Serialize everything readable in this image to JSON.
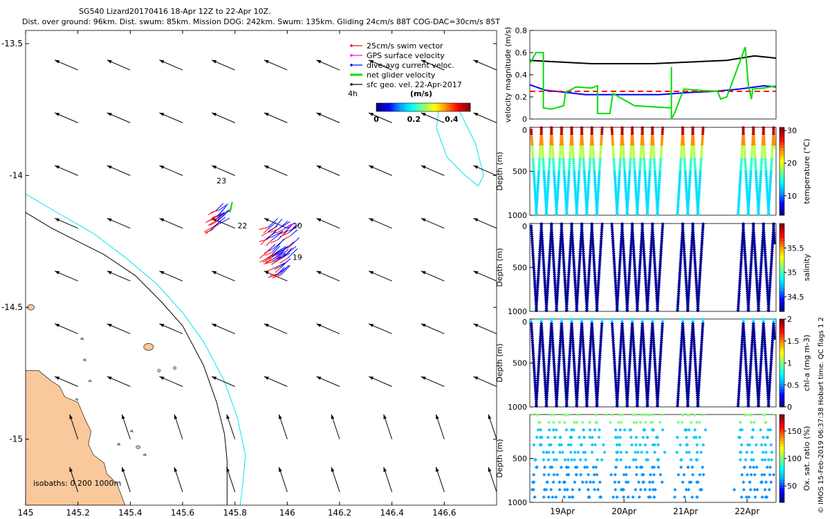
{
  "header": {
    "title": "SG540 Lizard20170416 18-Apr 12Z to 22-Apr 10Z.",
    "subtitle": "Dist. over ground: 96km. Dist. swum: 85km. Mission DOG: 242km. Swum: 135km. Gliding 24cm/s 88T COG-DAC=30cm/s 85T"
  },
  "credit": "© IMOS 15-Feb-2019 06:37:38 Hobart time. QC flags 1  2",
  "colors": {
    "land": "#f9c89b",
    "isobath_200": "#000000",
    "isobath_1000": "#00e5ee",
    "swim": "#ff0000",
    "gps": "#ff00ff",
    "dac": "#0000ff",
    "net": "#00dd00",
    "sfc": "#000000"
  },
  "chart_data": [
    {
      "type": "map-vectors",
      "xlim": [
        145.0,
        146.8
      ],
      "ylim": [
        -15.25,
        -13.45
      ],
      "x_ticks": [
        145,
        145.2,
        145.4,
        145.6,
        145.8,
        146,
        146.2,
        146.4,
        146.6
      ],
      "x_tick_labels": [
        "145",
        "145.2",
        "145.4",
        "145.6",
        "145.8",
        "146",
        "146.2",
        "146.4",
        "146.6"
      ],
      "y_ticks": [
        -13.5,
        -14,
        -14.5,
        -15
      ],
      "y_tick_labels": [
        "-13.5",
        "-14",
        "-14.5",
        "-15"
      ],
      "legend": {
        "position": "top-right",
        "items": [
          "25cm/s swim vector",
          "GPS surface velocity",
          "dive-avg current veloc.",
          "net glider velocity",
          "sfc geo. vel. 22-Apr-2017"
        ],
        "time_label": "4h"
      },
      "colorbar": {
        "label": "(m/s)",
        "ticks": [
          "0",
          "0.2",
          "0.4"
        ],
        "range": [
          0,
          0.5
        ]
      },
      "isobaths_label": "isobaths: 0   200  1000m",
      "point_labels": [
        "23",
        "22",
        "20",
        "19"
      ],
      "surface_current": {
        "u": -0.14,
        "v": 0.06,
        "grid_lon_step": 0.2,
        "grid_lat_step": 0.2
      }
    },
    {
      "type": "line",
      "ylabel": "velocity magnitude (m/s)",
      "ylim": [
        0,
        0.8
      ],
      "y_ticks": [
        "0",
        "0.2",
        "0.4",
        "0.6",
        "0.8"
      ],
      "x_days": [
        0,
        4
      ],
      "series": [
        {
          "name": "sfc geo. vel.",
          "color": "#000000",
          "points": [
            [
              0,
              0.53
            ],
            [
              0.3,
              0.52
            ],
            [
              1.0,
              0.5
            ],
            [
              2.0,
              0.5
            ],
            [
              3.2,
              0.53
            ],
            [
              3.65,
              0.57
            ],
            [
              4.0,
              0.55
            ]
          ]
        },
        {
          "name": "dive-avg current",
          "color": "#0000ff",
          "points": [
            [
              0,
              0.31
            ],
            [
              0.25,
              0.26
            ],
            [
              0.6,
              0.24
            ],
            [
              0.9,
              0.22
            ],
            [
              1.5,
              0.22
            ],
            [
              2.1,
              0.22
            ],
            [
              2.6,
              0.24
            ],
            [
              3.0,
              0.25
            ],
            [
              3.4,
              0.27
            ],
            [
              3.8,
              0.3
            ],
            [
              4.0,
              0.29
            ]
          ]
        },
        {
          "name": "swim vector",
          "color": "#ff0000",
          "dashed": true,
          "points": [
            [
              0,
              0.25
            ],
            [
              4.0,
              0.25
            ]
          ]
        },
        {
          "name": "net glider velocity",
          "color": "#00dd00",
          "points": [
            [
              0,
              0.5
            ],
            [
              0.1,
              0.6
            ],
            [
              0.22,
              0.6
            ],
            [
              0.22,
              0.1
            ],
            [
              0.35,
              0.09
            ],
            [
              0.55,
              0.12
            ],
            [
              0.58,
              0.24
            ],
            [
              0.75,
              0.29
            ],
            [
              1.0,
              0.28
            ],
            [
              1.1,
              0.3
            ],
            [
              1.1,
              0.05
            ],
            [
              1.3,
              0.05
            ],
            [
              1.35,
              0.23
            ],
            [
              1.7,
              0.12
            ],
            [
              2.0,
              0.11
            ],
            [
              2.3,
              0.1
            ],
            [
              2.3,
              0.47
            ],
            [
              2.3,
              0.0
            ],
            [
              2.35,
              0.05
            ],
            [
              2.5,
              0.27
            ],
            [
              2.75,
              0.26
            ],
            [
              3.05,
              0.25
            ],
            [
              3.1,
              0.18
            ],
            [
              3.2,
              0.2
            ],
            [
              3.5,
              0.65
            ],
            [
              3.55,
              0.3
            ],
            [
              3.6,
              0.18
            ],
            [
              3.62,
              0.27
            ],
            [
              3.8,
              0.28
            ],
            [
              4.0,
              0.3
            ]
          ]
        }
      ]
    },
    {
      "type": "scatter",
      "ylabel": "Depth (m)",
      "cbar_label": "temperature (°C)",
      "cbar_ticks": [
        "10",
        "20",
        "30"
      ],
      "cbar_range": [
        4,
        31
      ],
      "y_ticks": [
        "0",
        "500",
        "1000"
      ],
      "ylim": [
        0,
        1000
      ],
      "variable": "temperature"
    },
    {
      "type": "scatter",
      "ylabel": "Depth (m)",
      "cbar_label": "salinity",
      "cbar_ticks": [
        "34.5",
        "35",
        "35.5"
      ],
      "cbar_range": [
        34.2,
        36.0
      ],
      "y_ticks": [
        "0",
        "500",
        "1000"
      ],
      "ylim": [
        0,
        1000
      ],
      "variable": "salinity"
    },
    {
      "type": "scatter",
      "ylabel": "Depth (m)",
      "cbar_label": "chl-a (mg m-3)",
      "cbar_ticks": [
        "0",
        "0.5",
        "1",
        "1.5",
        "2"
      ],
      "cbar_range": [
        0,
        2
      ],
      "y_ticks": [
        "0",
        "500",
        "1000"
      ],
      "ylim": [
        0,
        1000
      ],
      "variable": "chl"
    },
    {
      "type": "scatter",
      "ylabel": "Depth (m)",
      "cbar_label": "Ox. sat. ratio (%)",
      "cbar_ticks": [
        "50",
        "100",
        "150"
      ],
      "cbar_range": [
        20,
        180
      ],
      "y_ticks": [
        "500",
        "1000"
      ],
      "ylim": [
        0,
        1000
      ],
      "variable": "oxygen"
    }
  ],
  "time_axis": {
    "ticks": [
      {
        "label": "19Apr",
        "day": 0.53
      },
      {
        "label": "20Apr",
        "day": 1.53
      },
      {
        "label": "21Apr",
        "day": 2.53
      },
      {
        "label": "22Apr",
        "day": 3.53
      }
    ],
    "profile_gaps": [
      [
        1.13,
        1.3
      ],
      [
        2.1,
        2.32
      ],
      [
        2.8,
        3.32
      ]
    ]
  }
}
